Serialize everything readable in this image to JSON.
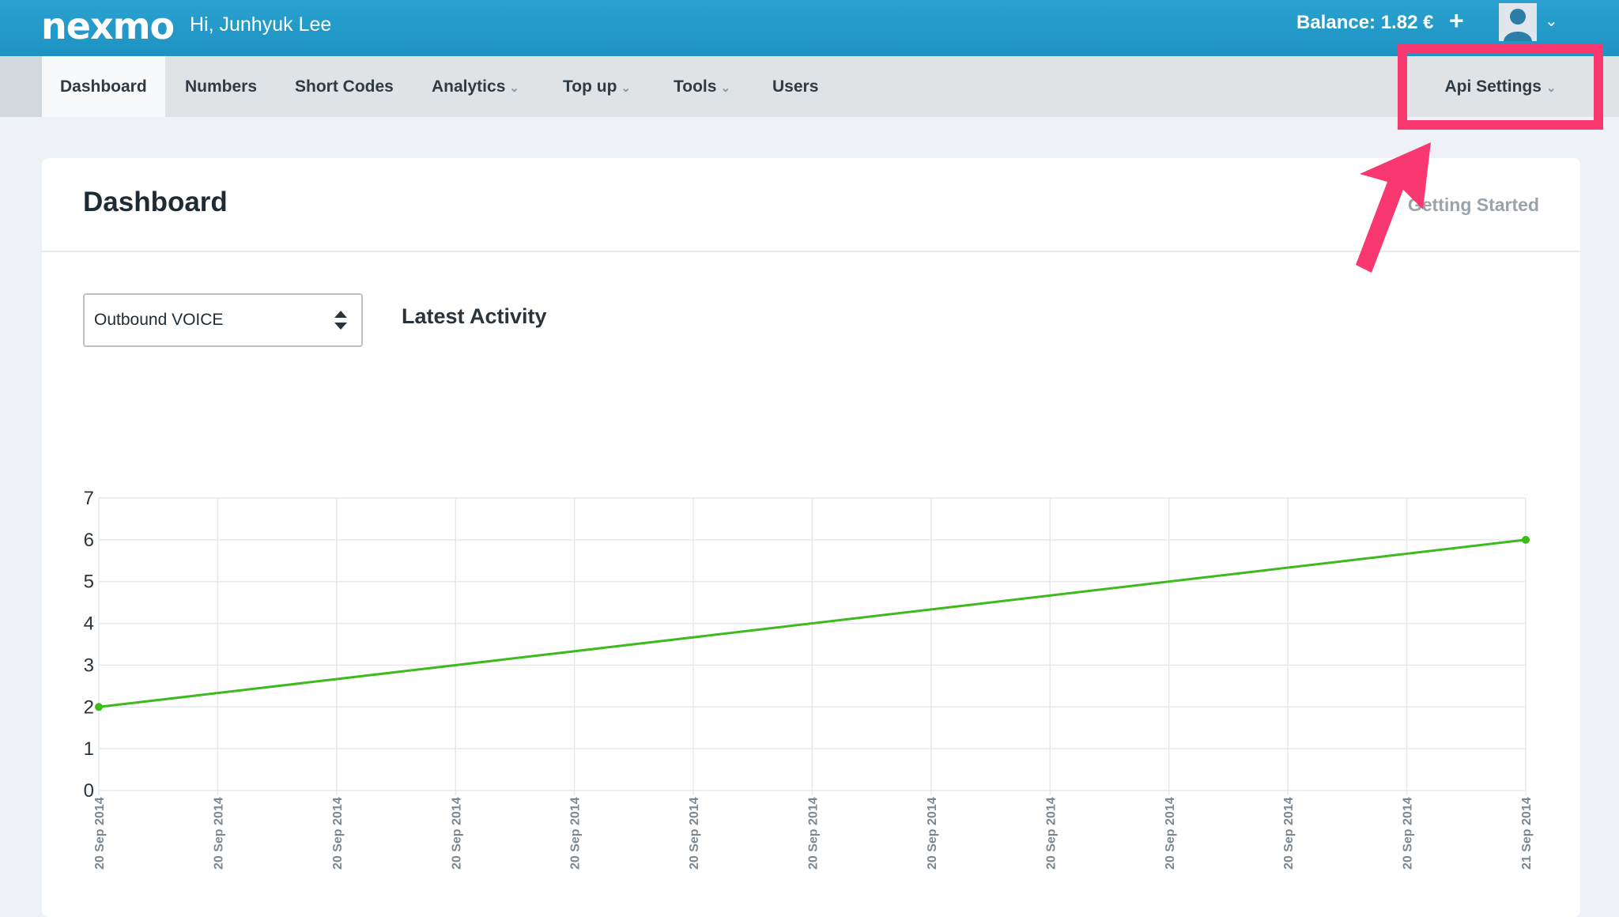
{
  "header": {
    "logo": "nexmo",
    "greeting": "Hi, Junhyuk Lee",
    "balance": "Balance: 1.82 €",
    "balance_add": "+"
  },
  "nav": {
    "items": [
      {
        "label": "Dashboard",
        "active": true
      },
      {
        "label": "Numbers"
      },
      {
        "label": "Short Codes"
      },
      {
        "label": "Analytics",
        "dropdown": true
      },
      {
        "label": "Top up",
        "dropdown": true
      },
      {
        "label": "Tools",
        "dropdown": true
      },
      {
        "label": "Users"
      }
    ],
    "api_settings": "Api Settings"
  },
  "card": {
    "title": "Dashboard",
    "getting_started": "Getting Started"
  },
  "activity": {
    "select_value": "Outbound VOICE",
    "heading": "Latest Activity"
  },
  "colors": {
    "topbar": "#1e93c3",
    "highlight": "#f9386f",
    "line": "#3dba1c"
  },
  "chart_data": {
    "type": "line",
    "categories": [
      "20 Sep 2014",
      "20 Sep 2014",
      "20 Sep 2014",
      "20 Sep 2014",
      "20 Sep 2014",
      "20 Sep 2014",
      "20 Sep 2014",
      "20 Sep 2014",
      "20 Sep 2014",
      "20 Sep 2014",
      "20 Sep 2014",
      "20 Sep 2014",
      "21 Sep 2014"
    ],
    "x": [
      0,
      12
    ],
    "values": [
      2,
      6
    ],
    "yticks": [
      "0",
      "1",
      "2",
      "3",
      "4",
      "5",
      "6",
      "7"
    ],
    "ylim": [
      0,
      7
    ],
    "grid": true
  }
}
